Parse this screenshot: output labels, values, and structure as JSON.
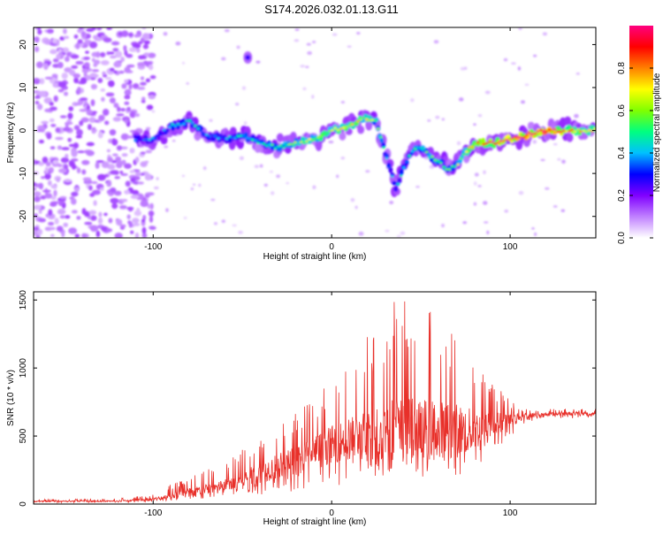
{
  "title": "S174.2026.032.01.13.G11",
  "chart_data": [
    {
      "type": "heatmap",
      "title": "S174.2026.032.01.13.G11",
      "xlabel": "Height of straight line (km)",
      "ylabel": "Frequency (Hz)",
      "xlim": [
        -167,
        148
      ],
      "ylim": [
        -25,
        24
      ],
      "xticks": [
        -100,
        0,
        100
      ],
      "yticks": [
        -20,
        -10,
        0,
        10,
        20
      ],
      "colorbar": {
        "label": "Normalized spectral amplitude",
        "range": [
          0,
          1
        ],
        "ticks": [
          0.0,
          0.2,
          0.4,
          0.6,
          0.8
        ],
        "colormap": [
          "#ffffff",
          "#c080ff",
          "#8000ff",
          "#0000ff",
          "#00c0ff",
          "#00ff80",
          "#80ff00",
          "#ffff00",
          "#ff8000",
          "#ff0000",
          "#ff0080"
        ]
      },
      "ridge": {
        "x": [
          -110,
          -100,
          -90,
          -80,
          -70,
          -60,
          -50,
          -40,
          -30,
          -20,
          -10,
          0,
          10,
          20,
          25,
          30,
          33,
          36,
          40,
          45,
          50,
          55,
          60,
          65,
          70,
          75,
          80,
          90,
          100,
          110,
          120,
          130,
          148
        ],
        "freq": [
          -2,
          -2,
          1,
          2,
          -1,
          -2,
          -1,
          -3,
          -4,
          -3,
          -2,
          0,
          1,
          3,
          2,
          -5,
          -9,
          -14,
          -9,
          -5,
          -4,
          -6,
          -7,
          -9,
          -8,
          -5,
          -3,
          -3,
          -2,
          -1,
          0,
          0,
          0
        ],
        "amplitude": [
          0.25,
          0.3,
          0.3,
          0.35,
          0.3,
          0.3,
          0.35,
          0.35,
          0.4,
          0.45,
          0.5,
          0.55,
          0.55,
          0.5,
          0.45,
          0.35,
          0.3,
          0.3,
          0.35,
          0.35,
          0.4,
          0.4,
          0.4,
          0.4,
          0.45,
          0.5,
          0.6,
          0.7,
          0.75,
          0.8,
          0.85,
          0.7,
          0.5
        ]
      },
      "isolated_blob": {
        "x": -47,
        "freq": 17,
        "amplitude": 0.25
      }
    },
    {
      "type": "line",
      "xlabel": "Height of straight line (km)",
      "ylabel": "SNR (10 * v/v)",
      "xlim": [
        -167,
        148
      ],
      "ylim": [
        0,
        1560
      ],
      "xticks": [
        -100,
        0,
        100
      ],
      "yticks": [
        0,
        500,
        1000,
        1500
      ],
      "color": "#e8302a",
      "envelope": {
        "x": [
          -167,
          -120,
          -100,
          -90,
          -80,
          -70,
          -60,
          -50,
          -40,
          -30,
          -20,
          -10,
          0,
          10,
          20,
          30,
          35,
          40,
          45,
          50,
          60,
          70,
          75,
          80,
          85,
          90,
          95,
          100,
          105,
          110,
          120,
          130,
          148
        ],
        "low": [
          10,
          10,
          15,
          20,
          30,
          40,
          50,
          60,
          70,
          80,
          90,
          100,
          120,
          150,
          180,
          200,
          200,
          210,
          200,
          200,
          200,
          200,
          220,
          250,
          300,
          350,
          400,
          480,
          560,
          600,
          620,
          630,
          630
        ],
        "mean": [
          20,
          22,
          35,
          60,
          90,
          110,
          140,
          180,
          230,
          280,
          320,
          380,
          440,
          480,
          500,
          540,
          560,
          560,
          560,
          560,
          550,
          540,
          540,
          540,
          560,
          580,
          600,
          620,
          640,
          650,
          660,
          665,
          665
        ],
        "high": [
          35,
          40,
          70,
          150,
          190,
          260,
          300,
          400,
          490,
          620,
          700,
          800,
          900,
          1050,
          1250,
          1450,
          1560,
          1520,
          1450,
          1450,
          1400,
          1350,
          1250,
          1100,
          1000,
          900,
          850,
          780,
          720,
          700,
          700,
          700,
          700
        ]
      }
    }
  ]
}
